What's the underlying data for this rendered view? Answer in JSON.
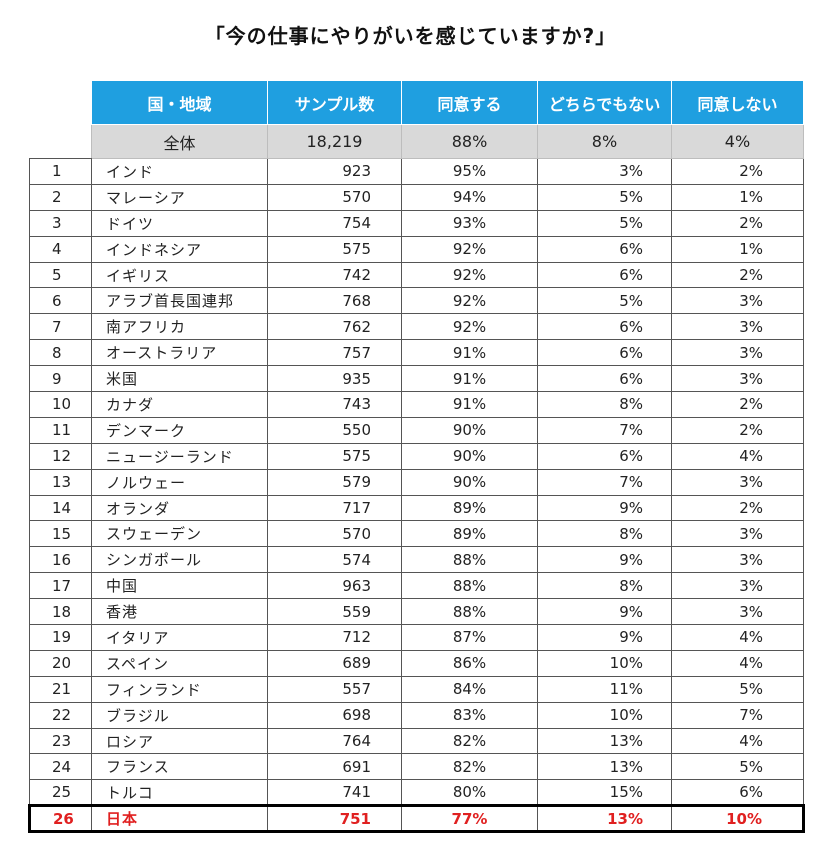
{
  "title": "「今の仕事にやりがいを感じていますか?」",
  "headers": {
    "country": "国・地域",
    "sample": "サンプル数",
    "agree": "同意する",
    "neutral": "どちらでもない",
    "disagree": "同意しない"
  },
  "total": {
    "label": "全体",
    "sample": "18,219",
    "agree": "88%",
    "neutral": "8%",
    "disagree": "4%"
  },
  "rows": [
    {
      "rank": "1",
      "country": "インド",
      "sample": "923",
      "agree": "95%",
      "neutral": "3%",
      "disagree": "2%"
    },
    {
      "rank": "2",
      "country": "マレーシア",
      "sample": "570",
      "agree": "94%",
      "neutral": "5%",
      "disagree": "1%"
    },
    {
      "rank": "3",
      "country": "ドイツ",
      "sample": "754",
      "agree": "93%",
      "neutral": "5%",
      "disagree": "2%"
    },
    {
      "rank": "4",
      "country": "インドネシア",
      "sample": "575",
      "agree": "92%",
      "neutral": "6%",
      "disagree": "1%"
    },
    {
      "rank": "5",
      "country": "イギリス",
      "sample": "742",
      "agree": "92%",
      "neutral": "6%",
      "disagree": "2%"
    },
    {
      "rank": "6",
      "country": "アラブ首長国連邦",
      "sample": "768",
      "agree": "92%",
      "neutral": "5%",
      "disagree": "3%"
    },
    {
      "rank": "7",
      "country": "南アフリカ",
      "sample": "762",
      "agree": "92%",
      "neutral": "6%",
      "disagree": "3%"
    },
    {
      "rank": "8",
      "country": "オーストラリア",
      "sample": "757",
      "agree": "91%",
      "neutral": "6%",
      "disagree": "3%"
    },
    {
      "rank": "9",
      "country": "米国",
      "sample": "935",
      "agree": "91%",
      "neutral": "6%",
      "disagree": "3%"
    },
    {
      "rank": "10",
      "country": "カナダ",
      "sample": "743",
      "agree": "91%",
      "neutral": "8%",
      "disagree": "2%"
    },
    {
      "rank": "11",
      "country": "デンマーク",
      "sample": "550",
      "agree": "90%",
      "neutral": "7%",
      "disagree": "2%"
    },
    {
      "rank": "12",
      "country": "ニュージーランド",
      "sample": "575",
      "agree": "90%",
      "neutral": "6%",
      "disagree": "4%"
    },
    {
      "rank": "13",
      "country": "ノルウェー",
      "sample": "579",
      "agree": "90%",
      "neutral": "7%",
      "disagree": "3%"
    },
    {
      "rank": "14",
      "country": "オランダ",
      "sample": "717",
      "agree": "89%",
      "neutral": "9%",
      "disagree": "2%"
    },
    {
      "rank": "15",
      "country": "スウェーデン",
      "sample": "570",
      "agree": "89%",
      "neutral": "8%",
      "disagree": "3%"
    },
    {
      "rank": "16",
      "country": "シンガポール",
      "sample": "574",
      "agree": "88%",
      "neutral": "9%",
      "disagree": "3%"
    },
    {
      "rank": "17",
      "country": "中国",
      "sample": "963",
      "agree": "88%",
      "neutral": "8%",
      "disagree": "3%"
    },
    {
      "rank": "18",
      "country": "香港",
      "sample": "559",
      "agree": "88%",
      "neutral": "9%",
      "disagree": "3%"
    },
    {
      "rank": "19",
      "country": "イタリア",
      "sample": "712",
      "agree": "87%",
      "neutral": "9%",
      "disagree": "4%"
    },
    {
      "rank": "20",
      "country": "スペイン",
      "sample": "689",
      "agree": "86%",
      "neutral": "10%",
      "disagree": "4%"
    },
    {
      "rank": "21",
      "country": "フィンランド",
      "sample": "557",
      "agree": "84%",
      "neutral": "11%",
      "disagree": "5%"
    },
    {
      "rank": "22",
      "country": "ブラジル",
      "sample": "698",
      "agree": "83%",
      "neutral": "10%",
      "disagree": "7%"
    },
    {
      "rank": "23",
      "country": "ロシア",
      "sample": "764",
      "agree": "82%",
      "neutral": "13%",
      "disagree": "4%"
    },
    {
      "rank": "24",
      "country": "フランス",
      "sample": "691",
      "agree": "82%",
      "neutral": "13%",
      "disagree": "5%"
    },
    {
      "rank": "25",
      "country": "トルコ",
      "sample": "741",
      "agree": "80%",
      "neutral": "15%",
      "disagree": "6%"
    }
  ],
  "highlight": {
    "rank": "26",
    "country": "日本",
    "sample": "751",
    "agree": "77%",
    "neutral": "13%",
    "disagree": "10%"
  },
  "colors": {
    "header_bg": "#1f9fe0",
    "total_bg": "#d9d9d9",
    "highlight_text": "#e02020",
    "highlight_border": "#000000"
  }
}
